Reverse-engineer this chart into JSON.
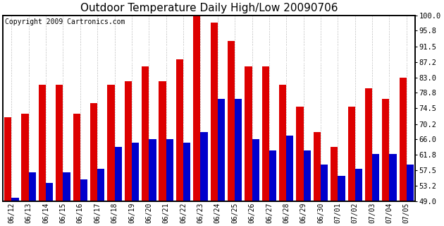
{
  "title": "Outdoor Temperature Daily High/Low 20090706",
  "copyright": "Copyright 2009 Cartronics.com",
  "ylim": [
    49.0,
    100.0
  ],
  "yticks": [
    49.0,
    53.2,
    57.5,
    61.8,
    66.0,
    70.2,
    74.5,
    78.8,
    83.0,
    87.2,
    91.5,
    95.8,
    100.0
  ],
  "dates": [
    "06/12",
    "06/13",
    "06/14",
    "06/15",
    "06/16",
    "06/17",
    "06/18",
    "06/19",
    "06/20",
    "06/21",
    "06/22",
    "06/23",
    "06/24",
    "06/25",
    "06/26",
    "06/27",
    "06/28",
    "06/29",
    "06/30",
    "07/01",
    "07/02",
    "07/03",
    "07/04",
    "07/05"
  ],
  "highs": [
    72,
    73,
    81,
    81,
    73,
    76,
    81,
    82,
    86,
    82,
    88,
    100,
    98,
    93,
    86,
    86,
    81,
    75,
    68,
    64,
    75,
    80,
    77,
    83
  ],
  "lows": [
    50,
    57,
    54,
    57,
    55,
    58,
    64,
    65,
    66,
    66,
    65,
    68,
    77,
    77,
    66,
    63,
    67,
    63,
    59,
    56,
    58,
    62,
    62,
    59
  ],
  "bar_color_high": "#dd0000",
  "bar_color_low": "#0000cc",
  "bg_color": "#ffffff",
  "plot_bg_color": "#ffffff",
  "grid_color": "#c0c0c0",
  "grid_white_color": "#ffffff",
  "title_fontsize": 11,
  "copyright_fontsize": 7,
  "tick_fontsize": 7,
  "ytick_fontsize": 7.5
}
